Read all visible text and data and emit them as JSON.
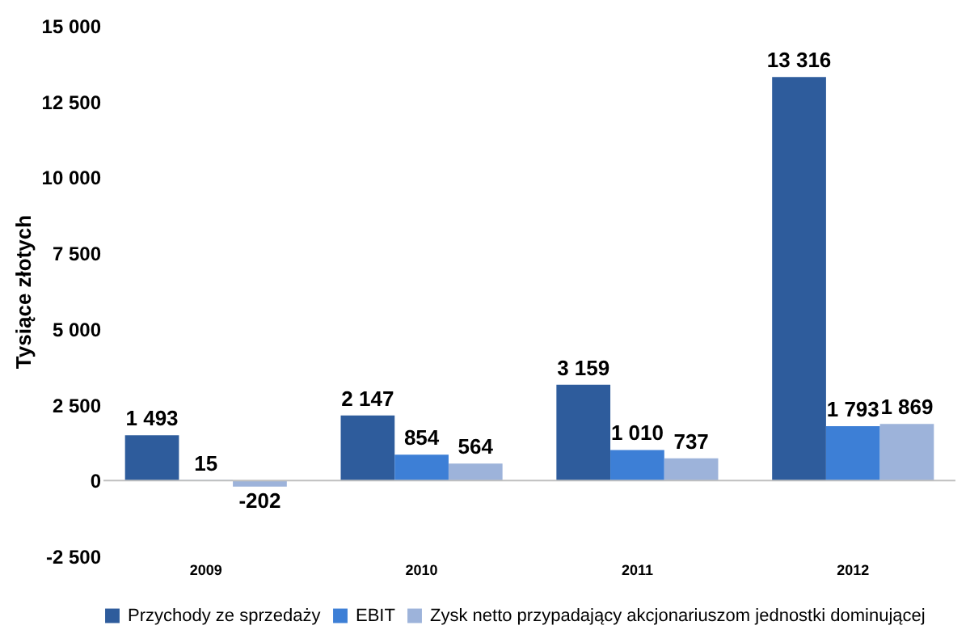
{
  "chart_data": {
    "type": "bar",
    "ylabel": "Tysiące złotych",
    "categories": [
      "2009",
      "2010",
      "2011",
      "2012"
    ],
    "series": [
      {
        "name": "Przychody ze sprzedaży",
        "color": "#2e5c9c",
        "values": [
          1493,
          2147,
          3159,
          13316
        ],
        "value_labels": [
          "1 493",
          "2 147",
          "3 159",
          "13 316"
        ]
      },
      {
        "name": "EBIT",
        "color": "#3d7fd6",
        "values": [
          15,
          854,
          1010,
          1793
        ],
        "value_labels": [
          "15",
          "854",
          "1 010",
          "1 793"
        ]
      },
      {
        "name": "Zysk netto przypadający akcjonariuszom jednostki dominującej",
        "color": "#9db3da",
        "values": [
          -202,
          564,
          737,
          1869
        ],
        "value_labels": [
          "-202",
          "564",
          "737",
          "1 869"
        ]
      }
    ],
    "ylim": [
      -2500,
      15000
    ],
    "yticks": [
      {
        "value": -2500,
        "label": "-2 500"
      },
      0,
      {
        "value": 2500,
        "label": "2 500"
      },
      {
        "value": 5000,
        "label": "5 000"
      },
      {
        "value": 7500,
        "label": "7 500"
      },
      {
        "value": 10000,
        "label": "10 000"
      },
      {
        "value": 12500,
        "label": "12 500"
      },
      {
        "value": 15000,
        "label": "15 000"
      }
    ],
    "legend": "bottom"
  }
}
